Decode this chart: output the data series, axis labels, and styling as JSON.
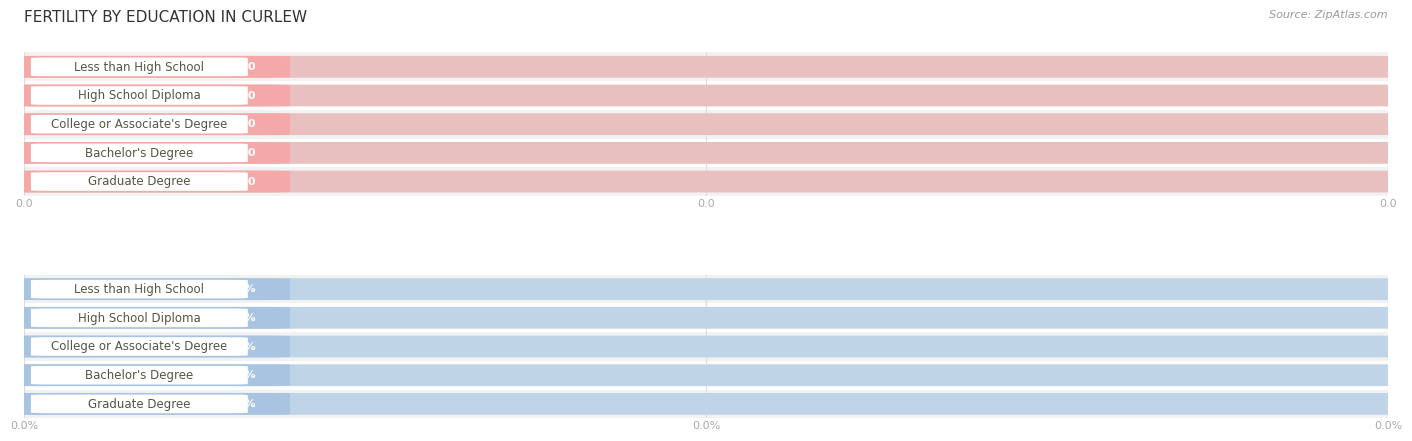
{
  "title": "FERTILITY BY EDUCATION IN CURLEW",
  "source": "Source: ZipAtlas.com",
  "categories": [
    "Less than High School",
    "High School Diploma",
    "College or Associate's Degree",
    "Bachelor's Degree",
    "Graduate Degree"
  ],
  "values_top": [
    0.0,
    0.0,
    0.0,
    0.0,
    0.0
  ],
  "values_bottom": [
    0.0,
    0.0,
    0.0,
    0.0,
    0.0
  ],
  "bar_color_top": "#f4a8a8",
  "bar_color_bottom": "#a8c4e0",
  "outer_bg_top": "#e8c0c0",
  "outer_bg_bottom": "#c0d4e8",
  "white_label_bg": "#ffffff",
  "text_color": "#555544",
  "value_text_top": "#ffffff",
  "value_text_bottom": "#ffffff",
  "bg_color": "#ffffff",
  "row_bg_even": "#f2f2f2",
  "row_bg_odd": "#ffffff",
  "grid_color": "#dddddd",
  "title_fontsize": 11,
  "source_fontsize": 8,
  "cat_fontsize": 8.5,
  "val_fontsize": 8,
  "tick_fontsize": 8,
  "tick_color": "#aaaaaa"
}
